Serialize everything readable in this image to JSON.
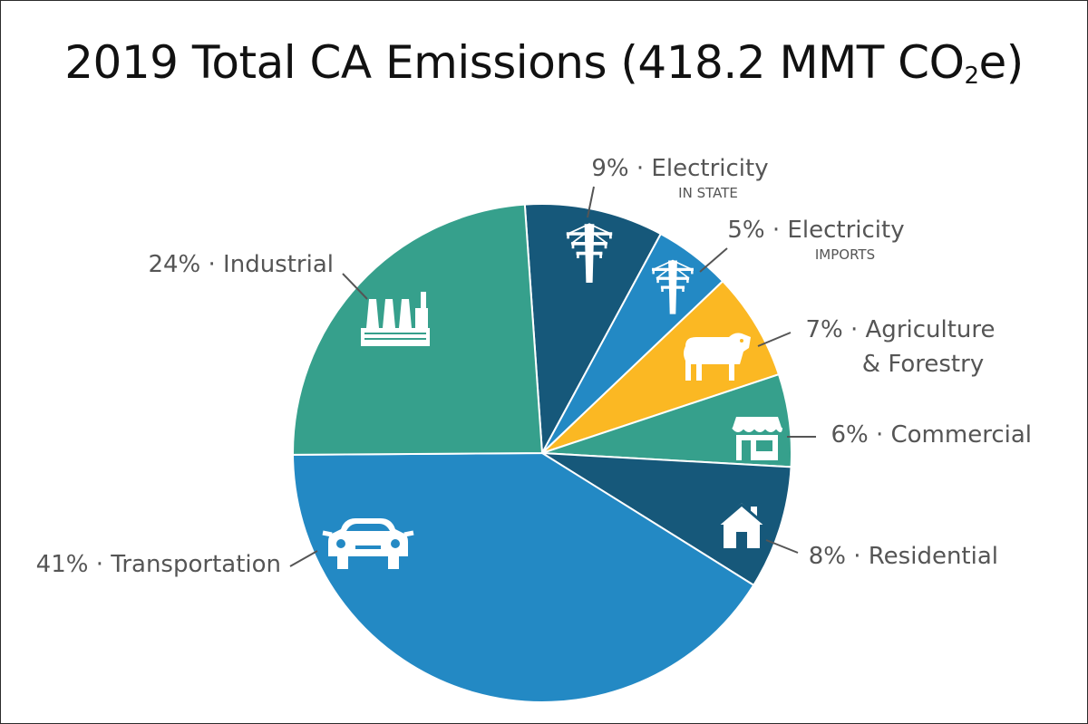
{
  "title": {
    "prefix": "2019 Total CA Emissions (418.2 MMT CO",
    "subscript": "2",
    "suffix": "e)"
  },
  "chart_data": {
    "type": "pie",
    "title": "2019 Total CA Emissions (418.2 MMT CO2e)",
    "total": "418.2 MMT CO2e",
    "slices": [
      {
        "name": "Electricity",
        "sub": "IN STATE",
        "value": 9,
        "pct_label": "9%",
        "color": "#16587a",
        "icon": "power-tower-icon"
      },
      {
        "name": "Electricity",
        "sub": "IMPORTS",
        "value": 5,
        "pct_label": "5%",
        "color": "#2389c4",
        "icon": "power-tower-icon"
      },
      {
        "name": "Agriculture & Forestry",
        "value": 7,
        "pct_label": "7%",
        "color": "#fbb823",
        "icon": "cow-icon"
      },
      {
        "name": "Commercial",
        "value": 6,
        "pct_label": "6%",
        "color": "#36a08c",
        "icon": "storefront-icon"
      },
      {
        "name": "Residential",
        "value": 8,
        "pct_label": "8%",
        "color": "#16587a",
        "icon": "house-icon"
      },
      {
        "name": "Transportation",
        "value": 41,
        "pct_label": "41%",
        "color": "#2389c4",
        "icon": "car-icon"
      },
      {
        "name": "Industrial",
        "value": 24,
        "pct_label": "24%",
        "color": "#36a08c",
        "icon": "factory-icon"
      }
    ]
  }
}
